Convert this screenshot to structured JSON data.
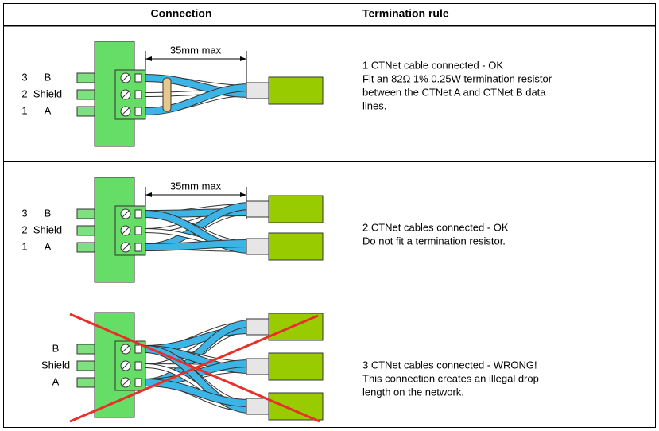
{
  "table": {
    "headers": [
      "Connection",
      "Termination rule"
    ],
    "rows": [
      {
        "diagram": {
          "dimension": "35mm max",
          "pins": [
            {
              "number": "3",
              "label": "B"
            },
            {
              "number": "2",
              "label": "Shield"
            },
            {
              "number": "1",
              "label": "A"
            }
          ]
        },
        "rule": [
          "1 CTNet cable connected - OK",
          "Fit an 82Ω 1% 0.25W termination resistor",
          "between the CTNet A and CTNet B data",
          "lines."
        ]
      },
      {
        "diagram": {
          "dimension": "35mm max",
          "pins": [
            {
              "number": "3",
              "label": "B"
            },
            {
              "number": "2",
              "label": "Shield"
            },
            {
              "number": "1",
              "label": "A"
            }
          ]
        },
        "rule": [
          "2 CTNet cables connected - OK",
          "Do not fit a termination resistor."
        ]
      },
      {
        "diagram": {
          "pins": [
            {
              "label": "B"
            },
            {
              "label": "Shield"
            },
            {
              "label": "A"
            }
          ]
        },
        "rule": [
          "3 CTNet cables connected - WRONG!",
          "This connection creates an illegal drop",
          "length on the network."
        ]
      }
    ]
  }
}
